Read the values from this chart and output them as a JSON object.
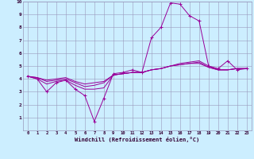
{
  "background_color": "#cceeff",
  "grid_color": "#9999bb",
  "line_color": "#990099",
  "xlabel": "Windchill (Refroidissement éolien,°C)",
  "xlim": [
    -0.5,
    23.5
  ],
  "ylim": [
    0,
    10
  ],
  "xtick_labels": [
    "0",
    "1",
    "2",
    "3",
    "4",
    "5",
    "6",
    "7",
    "8",
    "9",
    "10",
    "11",
    "12",
    "13",
    "14",
    "15",
    "16",
    "17",
    "18",
    "19",
    "20",
    "21",
    "22",
    "23"
  ],
  "ytick_labels": [
    "1",
    "2",
    "3",
    "4",
    "5",
    "6",
    "7",
    "8",
    "9",
    "10"
  ],
  "ytick_vals": [
    1,
    2,
    3,
    4,
    5,
    6,
    7,
    8,
    9,
    10
  ],
  "series": [
    [
      4.2,
      4.0,
      3.0,
      3.7,
      3.9,
      3.2,
      2.7,
      0.7,
      2.5,
      4.4,
      4.5,
      4.7,
      4.5,
      7.2,
      8.0,
      9.9,
      9.8,
      8.9,
      8.5,
      5.0,
      4.8,
      5.4,
      4.7,
      4.8
    ],
    [
      4.2,
      4.0,
      3.6,
      3.8,
      3.9,
      3.5,
      3.2,
      3.2,
      3.3,
      4.3,
      4.4,
      4.5,
      4.5,
      4.7,
      4.8,
      5.0,
      5.2,
      5.3,
      5.4,
      5.0,
      4.7,
      4.7,
      4.8,
      4.8
    ],
    [
      4.2,
      4.1,
      3.8,
      3.9,
      4.0,
      3.7,
      3.4,
      3.5,
      3.7,
      4.3,
      4.4,
      4.5,
      4.5,
      4.7,
      4.8,
      5.0,
      5.1,
      5.2,
      5.3,
      4.9,
      4.7,
      4.7,
      4.8,
      4.8
    ],
    [
      4.2,
      4.1,
      3.9,
      4.0,
      4.1,
      3.8,
      3.6,
      3.7,
      3.8,
      4.3,
      4.4,
      4.5,
      4.5,
      4.7,
      4.8,
      5.0,
      5.1,
      5.2,
      5.2,
      4.9,
      4.7,
      4.7,
      4.8,
      4.8
    ]
  ]
}
